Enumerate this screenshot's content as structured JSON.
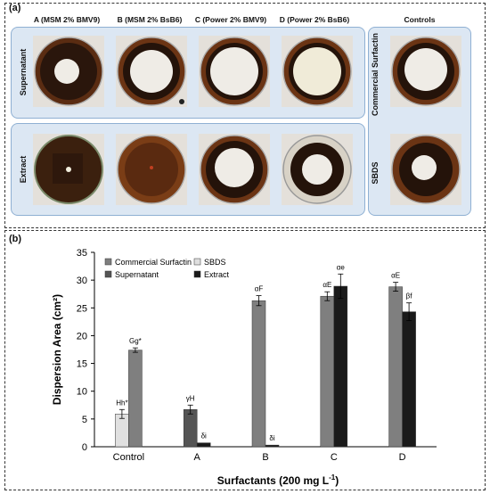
{
  "panel_a": {
    "label": "(a)",
    "columns": [
      "A (MSM 2% BMV9)",
      "B (MSM 2% BsB6)",
      "C (Power 2% BMV9)",
      "D (Power 2% BsB6)",
      "Controls"
    ],
    "rows": [
      "Supernatant",
      "Extract"
    ],
    "controls": [
      "Commercial Surfactin",
      "SBDS"
    ],
    "colors": {
      "box_fill": "#dce7f3",
      "box_border": "#8fb0d3",
      "oil_dark": "#2a160c",
      "oil_brown": "#6b3414"
    }
  },
  "panel_b": {
    "label": "(b)"
  },
  "chart_data": {
    "type": "bar",
    "ylabel": "Dispersion Area (cm²)",
    "xlabel": "Surfactants (200 mg L",
    "xlabel_sup": "-1",
    "xlabel_end": ")",
    "ylim": [
      0,
      35
    ],
    "yticks": [
      0,
      5,
      10,
      15,
      20,
      25,
      30,
      35
    ],
    "categories": [
      "Control",
      "A",
      "B",
      "C",
      "D"
    ],
    "legend_position": "top-left",
    "series": [
      {
        "name": "Commercial Surfactin",
        "color": "#7f7f7f"
      },
      {
        "name": "SBDS",
        "color": "#e0e0e0"
      },
      {
        "name": "Supernatant",
        "color": "#555555"
      },
      {
        "name": "Extract",
        "color": "#1a1a1a"
      }
    ],
    "bars": [
      {
        "category": "Control",
        "series": "SBDS",
        "value": 5.9,
        "error": 0.8,
        "label": "Hh*"
      },
      {
        "category": "Control",
        "series": "Commercial Surfactin",
        "value": 17.4,
        "error": 0.4,
        "label": "Gg*"
      },
      {
        "category": "A",
        "series": "Supernatant",
        "value": 6.7,
        "error": 0.8,
        "label": "γH"
      },
      {
        "category": "A",
        "series": "Extract",
        "value": 0.7,
        "error": 0.0,
        "label": "δi"
      },
      {
        "category": "B",
        "series": "Commercial Surfactin",
        "value": 26.3,
        "error": 0.9,
        "label": "αF"
      },
      {
        "category": "B",
        "series": "Extract",
        "value": 0.3,
        "error": 0.0,
        "label": "δi"
      },
      {
        "category": "C",
        "series": "Commercial Surfactin",
        "value": 27.1,
        "error": 0.8,
        "label": "αE"
      },
      {
        "category": "C",
        "series": "Extract",
        "value": 28.9,
        "error": 2.2,
        "label": "αe"
      },
      {
        "category": "D",
        "series": "Commercial Surfactin",
        "value": 28.8,
        "error": 0.8,
        "label": "αE"
      },
      {
        "category": "D",
        "series": "Extract",
        "value": 24.3,
        "error": 1.6,
        "label": "βf"
      }
    ]
  }
}
